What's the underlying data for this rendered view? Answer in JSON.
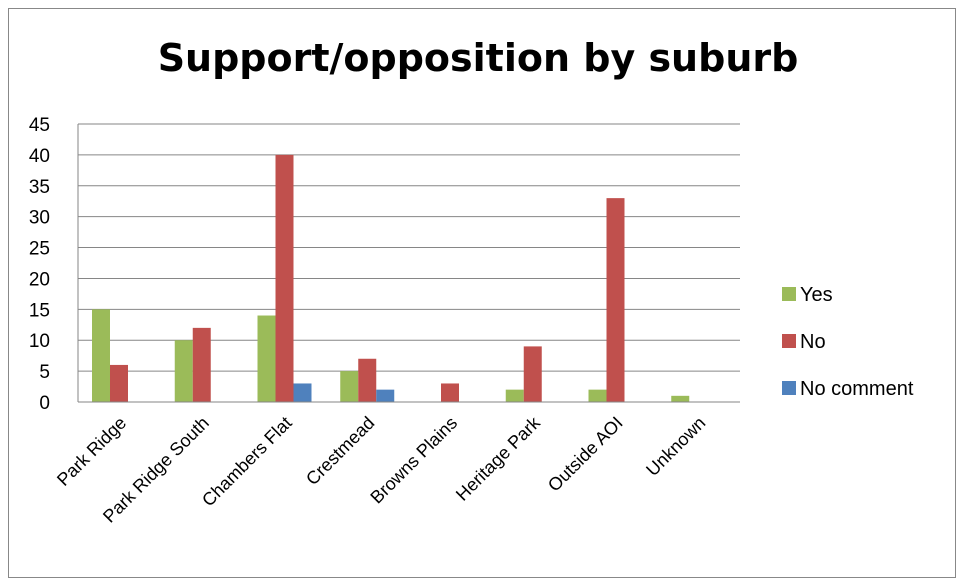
{
  "chart_data": {
    "type": "bar",
    "title": "Support/opposition by suburb",
    "xlabel": "",
    "ylabel": "",
    "ylim": [
      0,
      45
    ],
    "yticks": [
      0,
      5,
      10,
      15,
      20,
      25,
      30,
      35,
      40,
      45
    ],
    "grid": true,
    "legend_position": "right",
    "categories": [
      "Park Ridge",
      "Park Ridge South",
      "Chambers Flat",
      "Crestmead",
      "Browns Plains",
      "Heritage Park",
      "Outside AOI",
      "Unknown"
    ],
    "series": [
      {
        "name": "Yes",
        "color": "#9BBB59",
        "values": [
          15,
          10,
          14,
          5,
          0,
          2,
          2,
          1
        ]
      },
      {
        "name": "No",
        "color": "#C0504D",
        "values": [
          6,
          12,
          40,
          7,
          3,
          9,
          33,
          0
        ]
      },
      {
        "name": "No comment",
        "color": "#4F81BD",
        "values": [
          0,
          0,
          3,
          2,
          0,
          0,
          0,
          0
        ]
      }
    ]
  }
}
